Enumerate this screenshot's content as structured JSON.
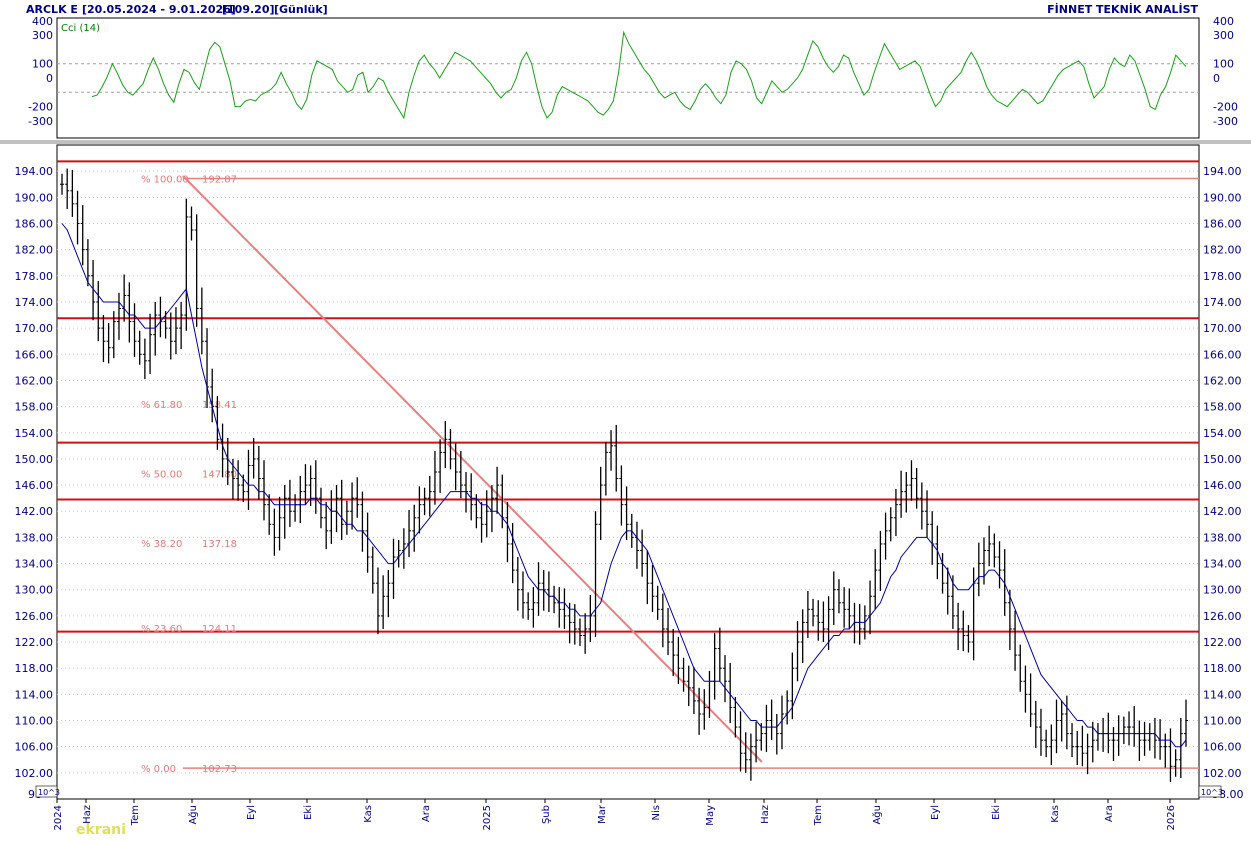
{
  "header": {
    "symbol": "ARCLK E",
    "range": "[20.05.2024 - 9.01.2026]",
    "last": "[109.20]",
    "period": "[Günlük]",
    "brand": "FİNNET TEKNİK ANALİST"
  },
  "watermark": "ekrani",
  "indicator": {
    "name": "Cci (14)",
    "ticks": [
      "400",
      "300",
      "100",
      "0",
      "-200",
      "-300"
    ],
    "ylim": [
      -420,
      420
    ],
    "reference_lines": [
      100,
      -100
    ],
    "color": "#1aa01a"
  },
  "price_axis": {
    "ticks": [
      "194.00",
      "190.00",
      "186.00",
      "182.00",
      "178.00",
      "174.00",
      "170.00",
      "166.00",
      "162.00",
      "158.00",
      "154.00",
      "150.00",
      "146.00",
      "142.00",
      "138.00",
      "134.00",
      "130.00",
      "126.00",
      "122.00",
      "118.00",
      "114.00",
      "110.00",
      "106.00",
      "102.00"
    ],
    "bottom_left": "98",
    "bottom_right": "98.00",
    "multiplier_label": "10^3"
  },
  "x_axis": {
    "labels": [
      "2024",
      "Haz",
      "Tem",
      "Ağu",
      "Eyl",
      "Eki",
      "Kas",
      "Ara",
      "2025",
      "Şub",
      "Mar",
      "Nis",
      "May",
      "Haz",
      "Tem",
      "Ağu",
      "Eyl",
      "Eki",
      "Kas",
      "Ara",
      "2026"
    ]
  },
  "fibonacci": {
    "levels": [
      {
        "pct": "% 100.00",
        "value": "192.87"
      },
      {
        "pct": "% 61.80",
        "value": "158.41"
      },
      {
        "pct": "% 50.00",
        "value": "147.80"
      },
      {
        "pct": "% 38.20",
        "value": "137.18"
      },
      {
        "pct": "% 23.60",
        "value": "124.11"
      },
      {
        "pct": "% 0.00",
        "value": "102.73"
      }
    ],
    "color": "#e88080"
  },
  "chart_data": {
    "type": "line",
    "ylim": [
      98,
      198
    ],
    "series": [
      {
        "values": [
          192,
          191,
          189,
          186,
          182,
          178,
          174,
          170,
          168,
          167,
          171,
          173,
          175,
          171,
          168,
          166,
          165,
          169,
          172,
          171,
          170,
          168,
          170,
          172,
          187,
          185,
          173,
          168,
          161,
          158,
          153,
          150,
          148,
          147,
          146,
          145,
          149,
          150,
          147,
          143,
          140,
          138,
          141,
          144,
          142,
          143,
          145,
          146,
          147,
          144,
          141,
          139,
          142,
          144,
          140,
          142,
          144,
          143,
          139,
          135,
          131,
          126,
          129,
          131,
          135,
          136,
          137,
          139,
          141,
          143,
          144,
          145,
          148,
          151,
          153,
          150,
          148,
          146,
          145,
          143,
          141,
          140,
          142,
          144,
          146,
          141,
          137,
          133,
          130,
          128,
          127,
          128,
          131,
          130,
          129,
          128,
          127,
          126,
          125,
          124,
          123,
          124,
          126,
          140,
          146,
          151,
          152,
          147,
          143,
          140,
          138,
          136,
          134,
          131,
          129,
          127,
          124,
          122,
          120,
          118,
          116,
          115,
          113,
          111,
          112,
          116,
          121,
          118,
          116,
          112,
          109,
          105,
          104,
          106,
          107,
          108,
          110,
          109,
          108,
          111,
          113,
          118,
          122,
          125,
          127,
          126,
          125,
          124,
          127,
          130,
          128,
          127,
          126,
          125,
          124,
          126,
          129,
          133,
          137,
          139,
          141,
          143,
          145,
          146,
          147,
          144,
          142,
          140,
          137,
          134,
          131,
          129,
          126,
          124,
          123,
          122,
          131,
          134,
          136,
          137,
          135,
          133,
          128,
          124,
          120,
          116,
          114,
          111,
          109,
          107,
          106,
          107,
          110,
          111,
          108,
          106,
          106,
          105,
          106,
          107,
          108,
          108,
          107,
          107,
          108,
          109,
          109,
          108,
          107,
          107,
          108,
          107,
          106,
          106,
          103,
          104,
          108,
          110
        ],
        "name": "",
        "color": "#000000",
        "style": "ohlc_bars"
      },
      {
        "values": [
          186,
          185,
          183,
          181,
          179,
          177,
          176,
          175,
          174,
          174,
          174,
          174,
          173,
          172,
          172,
          171,
          170,
          170,
          170,
          171,
          172,
          173,
          174,
          175,
          176,
          172,
          168,
          164,
          161,
          158,
          155,
          152,
          150,
          149,
          148,
          147,
          146,
          146,
          145,
          145,
          144,
          143,
          143,
          143,
          143,
          143,
          143,
          143,
          144,
          144,
          143,
          143,
          142,
          142,
          141,
          140,
          140,
          139,
          139,
          138,
          137,
          136,
          135,
          134,
          134,
          135,
          136,
          137,
          138,
          139,
          140,
          141,
          142,
          143,
          144,
          145,
          145,
          145,
          145,
          144,
          144,
          143,
          143,
          142,
          142,
          141,
          140,
          138,
          136,
          134,
          132,
          131,
          130,
          130,
          129,
          129,
          128,
          128,
          127,
          127,
          126,
          126,
          126,
          127,
          128,
          131,
          134,
          136,
          138,
          139,
          139,
          138,
          137,
          136,
          134,
          132,
          130,
          128,
          126,
          124,
          122,
          120,
          118,
          117,
          116,
          116,
          116,
          116,
          115,
          114,
          113,
          112,
          111,
          110,
          110,
          109,
          109,
          109,
          109,
          110,
          111,
          112,
          114,
          116,
          118,
          119,
          120,
          121,
          122,
          123,
          123,
          124,
          124,
          125,
          125,
          125,
          126,
          127,
          128,
          130,
          132,
          133,
          135,
          136,
          137,
          138,
          138,
          138,
          137,
          136,
          134,
          133,
          131,
          130,
          130,
          130,
          131,
          132,
          132,
          133,
          133,
          132,
          131,
          129,
          127,
          125,
          123,
          121,
          119,
          117,
          116,
          115,
          114,
          113,
          112,
          111,
          110,
          110,
          109,
          109,
          108,
          108,
          108,
          108,
          108,
          108,
          108,
          108,
          108,
          108,
          108,
          108,
          107,
          107,
          107,
          106,
          106,
          107
        ],
        "name": "",
        "color": "#0000a0",
        "style": "moving_average"
      }
    ],
    "cci": [
      -130,
      -120,
      -60,
      10,
      100,
      30,
      -50,
      -100,
      -120,
      -80,
      -40,
      60,
      140,
      60,
      -40,
      -120,
      -170,
      -40,
      60,
      40,
      -30,
      -80,
      60,
      200,
      250,
      220,
      100,
      -20,
      -200,
      -200,
      -160,
      -150,
      -160,
      -120,
      -100,
      -80,
      -40,
      40,
      -40,
      -100,
      -180,
      -220,
      -150,
      20,
      120,
      100,
      80,
      60,
      -20,
      -60,
      -100,
      -80,
      20,
      40,
      -100,
      -60,
      0,
      -20,
      -100,
      -160,
      -220,
      -280,
      -100,
      20,
      120,
      160,
      100,
      60,
      0,
      60,
      120,
      180,
      160,
      140,
      120,
      80,
      40,
      0,
      -40,
      -100,
      -140,
      -100,
      -80,
      0,
      120,
      180,
      100,
      -60,
      -200,
      -280,
      -240,
      -120,
      -60,
      -80,
      -100,
      -120,
      -140,
      -160,
      -200,
      -240,
      -260,
      -220,
      -160,
      40,
      320,
      240,
      180,
      120,
      60,
      20,
      -40,
      -100,
      -140,
      -120,
      -100,
      -160,
      -200,
      -220,
      -160,
      -80,
      -40,
      -80,
      -140,
      -180,
      -120,
      40,
      120,
      100,
      60,
      -20,
      -140,
      -180,
      -100,
      -20,
      -60,
      -100,
      -80,
      -40,
      0,
      60,
      160,
      260,
      220,
      140,
      80,
      40,
      80,
      160,
      140,
      40,
      -40,
      -120,
      -80,
      40,
      140,
      240,
      180,
      120,
      60,
      80,
      100,
      120,
      80,
      -20,
      -120,
      -200,
      -160,
      -80,
      -40,
      0,
      40,
      120,
      180,
      120,
      40,
      -60,
      -120,
      -160,
      -180,
      -200,
      -160,
      -120,
      -80,
      -100,
      -140,
      -180,
      -160,
      -100,
      -40,
      20,
      60,
      80,
      100,
      120,
      80,
      -40,
      -140,
      -100,
      -60,
      60,
      140,
      100,
      80,
      160,
      120,
      20,
      -80,
      -200,
      -220,
      -120,
      -60,
      40,
      160,
      120,
      80
    ],
    "xlabel": "",
    "ylabel": ""
  }
}
